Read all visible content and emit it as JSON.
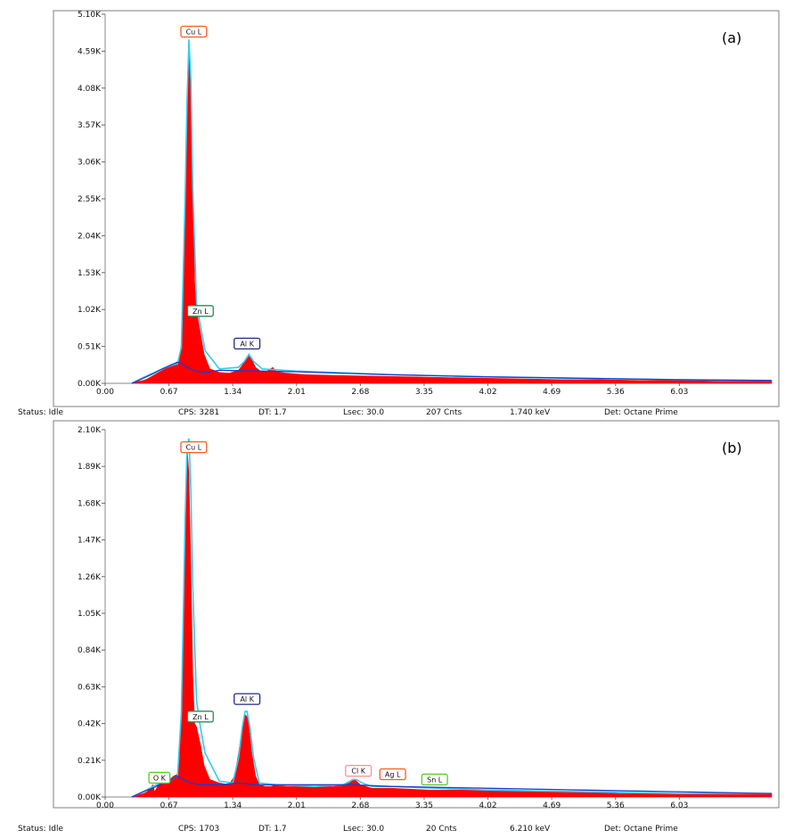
{
  "colors": {
    "spectrum_fill": "#ff0000",
    "fit_line": "#33ccee",
    "background_line": "#1a3ccc",
    "frame": "#7f7f7f"
  },
  "chart_data": [
    {
      "type": "area",
      "panel_label": "(a)",
      "xlim": [
        0,
        7.0
      ],
      "ylim": [
        0,
        5.1
      ],
      "y_unit": "K",
      "x_ticks": [
        "0.00",
        "0.67",
        "1.34",
        "2.01",
        "2.68",
        "3.35",
        "4.02",
        "4.69",
        "5.36",
        "6.03"
      ],
      "y_ticks": [
        "0.00K",
        "0.51K",
        "1.02K",
        "1.53K",
        "2.04K",
        "2.55K",
        "3.06K",
        "3.57K",
        "4.08K",
        "4.59K",
        "5.10K"
      ],
      "series": [
        {
          "role": "spectrum",
          "x": [
            0.28,
            0.32,
            0.36,
            0.4,
            0.44,
            0.48,
            0.52,
            0.56,
            0.6,
            0.64,
            0.68,
            0.72,
            0.76,
            0.78,
            0.8,
            0.82,
            0.84,
            0.86,
            0.88,
            0.9,
            0.92,
            0.94,
            0.96,
            0.98,
            1.0,
            1.04,
            1.1,
            1.2,
            1.3,
            1.4,
            1.44,
            1.48,
            1.51,
            1.54,
            1.58,
            1.64,
            1.7,
            1.76,
            1.8,
            1.9,
            2.1,
            2.4,
            2.8,
            3.2,
            3.6,
            4.0,
            4.4,
            4.8,
            5.2,
            5.6,
            6.0,
            6.4,
            6.8,
            7.0
          ],
          "y": [
            0.0,
            0.02,
            0.03,
            0.04,
            0.06,
            0.09,
            0.12,
            0.15,
            0.18,
            0.21,
            0.24,
            0.27,
            0.3,
            0.35,
            0.55,
            1.2,
            2.5,
            3.8,
            4.7,
            4.2,
            2.8,
            1.4,
            1.0,
            0.85,
            0.7,
            0.4,
            0.2,
            0.15,
            0.14,
            0.18,
            0.25,
            0.35,
            0.38,
            0.33,
            0.22,
            0.16,
            0.17,
            0.22,
            0.16,
            0.14,
            0.12,
            0.11,
            0.1,
            0.09,
            0.08,
            0.07,
            0.06,
            0.05,
            0.05,
            0.04,
            0.04,
            0.03,
            0.03,
            0.03
          ]
        },
        {
          "role": "fit",
          "x": [
            0.28,
            0.4,
            0.5,
            0.6,
            0.7,
            0.76,
            0.8,
            0.84,
            0.86,
            0.88,
            0.9,
            0.92,
            0.96,
            1.0,
            1.05,
            1.2,
            1.4,
            1.46,
            1.51,
            1.56,
            1.65,
            2.0,
            3.0,
            4.0,
            5.0,
            6.0,
            7.0
          ],
          "y": [
            0.0,
            0.08,
            0.14,
            0.2,
            0.25,
            0.27,
            0.5,
            2.6,
            3.9,
            4.75,
            4.2,
            2.7,
            1.1,
            0.8,
            0.45,
            0.2,
            0.22,
            0.3,
            0.4,
            0.3,
            0.2,
            0.17,
            0.12,
            0.09,
            0.07,
            0.05,
            0.04
          ]
        },
        {
          "role": "background",
          "x": [
            0.28,
            0.4,
            0.5,
            0.6,
            0.7,
            0.76,
            0.8,
            0.86,
            0.95,
            1.05,
            1.2,
            1.6,
            2.0,
            3.0,
            4.0,
            5.0,
            6.0,
            7.0
          ],
          "y": [
            0.0,
            0.07,
            0.13,
            0.2,
            0.26,
            0.29,
            0.28,
            0.22,
            0.17,
            0.15,
            0.18,
            0.17,
            0.16,
            0.12,
            0.09,
            0.07,
            0.05,
            0.04
          ]
        }
      ],
      "annotations": [
        {
          "text": "Cu L",
          "x": 0.93,
          "y": 4.86,
          "color": "#ff5a1e"
        },
        {
          "text": "Zn L",
          "x": 1.0,
          "y": 1.0,
          "color": "#2e8b57"
        },
        {
          "text": "Al K",
          "x": 1.49,
          "y": 0.55,
          "color": "#1f2a8a"
        }
      ],
      "status": {
        "status": "Status: Idle",
        "cps": "CPS: 3281",
        "dt": "DT: 1.7",
        "lsec": "Lsec: 30.0",
        "cnts": "207 Cnts",
        "kev": "1.740 keV",
        "det": "Det: Octane Prime"
      }
    },
    {
      "type": "area",
      "panel_label": "(b)",
      "xlim": [
        0,
        7.0
      ],
      "ylim": [
        0,
        2.1
      ],
      "y_unit": "K",
      "x_ticks": [
        "0.00",
        "0.67",
        "1.34",
        "2.01",
        "2.68",
        "3.35",
        "4.02",
        "4.69",
        "5.36",
        "6.03"
      ],
      "y_ticks": [
        "0.00K",
        "0.21K",
        "0.42K",
        "0.63K",
        "0.84K",
        "1.05K",
        "1.26K",
        "1.47K",
        "1.68K",
        "1.89K",
        "2.10K"
      ],
      "series": [
        {
          "role": "spectrum",
          "x": [
            0.28,
            0.34,
            0.4,
            0.44,
            0.48,
            0.5,
            0.52,
            0.54,
            0.56,
            0.6,
            0.64,
            0.68,
            0.72,
            0.76,
            0.78,
            0.8,
            0.82,
            0.84,
            0.86,
            0.88,
            0.9,
            0.92,
            0.94,
            0.96,
            0.98,
            1.0,
            1.04,
            1.1,
            1.2,
            1.3,
            1.36,
            1.4,
            1.44,
            1.47,
            1.49,
            1.51,
            1.54,
            1.58,
            1.62,
            1.68,
            1.74,
            1.8,
            1.9,
            2.1,
            2.4,
            2.56,
            2.62,
            2.68,
            2.8,
            3.0,
            3.4,
            3.8,
            4.2,
            4.6,
            5.0,
            5.4,
            5.8,
            6.2,
            6.6,
            7.0
          ],
          "y": [
            0.0,
            0.01,
            0.02,
            0.03,
            0.05,
            0.07,
            0.03,
            0.05,
            0.07,
            0.08,
            0.09,
            0.1,
            0.12,
            0.13,
            0.2,
            0.5,
            1.0,
            1.6,
            2.0,
            1.85,
            1.3,
            0.7,
            0.42,
            0.4,
            0.35,
            0.3,
            0.18,
            0.1,
            0.08,
            0.07,
            0.12,
            0.25,
            0.4,
            0.47,
            0.46,
            0.4,
            0.25,
            0.12,
            0.07,
            0.06,
            0.06,
            0.07,
            0.06,
            0.06,
            0.06,
            0.08,
            0.1,
            0.07,
            0.05,
            0.05,
            0.04,
            0.04,
            0.04,
            0.03,
            0.03,
            0.02,
            0.02,
            0.02,
            0.02,
            0.02
          ]
        },
        {
          "role": "fit",
          "x": [
            0.28,
            0.4,
            0.5,
            0.54,
            0.6,
            0.7,
            0.76,
            0.8,
            0.84,
            0.86,
            0.88,
            0.9,
            0.92,
            0.96,
            1.0,
            1.05,
            1.2,
            1.34,
            1.4,
            1.44,
            1.47,
            1.49,
            1.52,
            1.56,
            1.62,
            1.8,
            2.2,
            2.5,
            2.6,
            2.64,
            2.7,
            2.8,
            3.0,
            3.5,
            4.0,
            5.0,
            6.0,
            7.0
          ],
          "y": [
            0.0,
            0.03,
            0.06,
            0.07,
            0.08,
            0.1,
            0.12,
            0.48,
            1.6,
            2.0,
            2.05,
            1.75,
            1.2,
            0.55,
            0.4,
            0.25,
            0.09,
            0.08,
            0.22,
            0.4,
            0.49,
            0.49,
            0.4,
            0.22,
            0.08,
            0.07,
            0.06,
            0.07,
            0.1,
            0.1,
            0.08,
            0.06,
            0.06,
            0.05,
            0.04,
            0.03,
            0.02,
            0.02
          ]
        },
        {
          "role": "background",
          "x": [
            0.28,
            0.4,
            0.5,
            0.6,
            0.7,
            0.76,
            0.82,
            0.9,
            1.0,
            1.2,
            1.4,
            1.6,
            2.0,
            2.6,
            3.0,
            4.0,
            5.0,
            6.0,
            7.0
          ],
          "y": [
            0.0,
            0.03,
            0.05,
            0.08,
            0.1,
            0.12,
            0.1,
            0.08,
            0.07,
            0.07,
            0.08,
            0.07,
            0.07,
            0.07,
            0.06,
            0.05,
            0.04,
            0.03,
            0.02
          ]
        }
      ],
      "annotations": [
        {
          "text": "Cu L",
          "x": 0.93,
          "y": 2.0,
          "color": "#ff5a1e"
        },
        {
          "text": "Zn L",
          "x": 1.0,
          "y": 0.46,
          "color": "#2e8b57"
        },
        {
          "text": "Al K",
          "x": 1.49,
          "y": 0.56,
          "color": "#1f2a8a"
        },
        {
          "text": "O K",
          "x": 0.57,
          "y": 0.11,
          "color": "#55cc22"
        },
        {
          "text": "Cl K",
          "x": 2.66,
          "y": 0.15,
          "color": "#ff9090"
        },
        {
          "text": "Ag L",
          "x": 3.02,
          "y": 0.13,
          "color": "#ff5a1e"
        },
        {
          "text": "Sn L",
          "x": 3.46,
          "y": 0.1,
          "color": "#55cc22"
        }
      ],
      "status": {
        "status": "Status: Idle",
        "cps": "CPS: 1703",
        "dt": "DT: 1.7",
        "lsec": "Lsec: 30.0",
        "cnts": "20 Cnts",
        "kev": "6.210 keV",
        "det": "Det: Octane Prime"
      }
    }
  ]
}
